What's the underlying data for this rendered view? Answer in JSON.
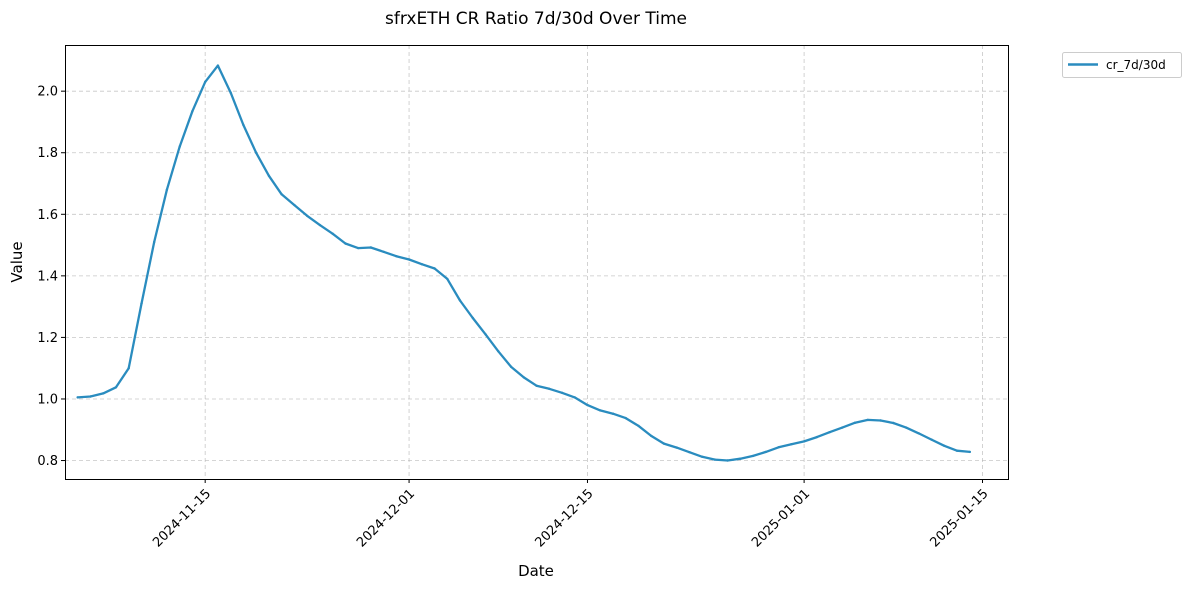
{
  "chart_data": {
    "type": "line",
    "title": "sfrxETH CR Ratio 7d/30d Over Time",
    "xlabel": "Date",
    "ylabel": "Value",
    "x_ticks": [
      "2024-11-15",
      "2024-12-01",
      "2024-12-15",
      "2025-01-01",
      "2025-01-15"
    ],
    "y_ticks": [
      "0.8",
      "1.0",
      "1.2",
      "1.4",
      "1.6",
      "1.8",
      "2.0"
    ],
    "ylim": [
      0.74,
      2.15
    ],
    "xlim": [
      "2024-11-04",
      "2025-01-17"
    ],
    "grid": true,
    "legend_position": "outside-top-right",
    "series": [
      {
        "name": "cr_7d/30d",
        "color": "#2a8cbf",
        "points": [
          [
            "2024-11-05",
            1.005
          ],
          [
            "2024-11-06",
            1.008
          ],
          [
            "2024-11-07",
            1.018
          ],
          [
            "2024-11-08",
            1.038
          ],
          [
            "2024-11-09",
            1.1
          ],
          [
            "2024-11-10",
            1.31
          ],
          [
            "2024-11-11",
            1.51
          ],
          [
            "2024-11-12",
            1.68
          ],
          [
            "2024-11-13",
            1.82
          ],
          [
            "2024-11-14",
            1.935
          ],
          [
            "2024-11-15",
            2.03
          ],
          [
            "2024-11-16",
            2.083
          ],
          [
            "2024-11-17",
            1.995
          ],
          [
            "2024-11-18",
            1.89
          ],
          [
            "2024-11-19",
            1.8
          ],
          [
            "2024-11-20",
            1.725
          ],
          [
            "2024-11-21",
            1.665
          ],
          [
            "2024-11-22",
            1.63
          ],
          [
            "2024-11-23",
            1.595
          ],
          [
            "2024-11-24",
            1.565
          ],
          [
            "2024-11-25",
            1.537
          ],
          [
            "2024-11-26",
            1.505
          ],
          [
            "2024-11-27",
            1.49
          ],
          [
            "2024-11-28",
            1.492
          ],
          [
            "2024-11-29",
            1.478
          ],
          [
            "2024-11-30",
            1.464
          ],
          [
            "2024-12-01",
            1.453
          ],
          [
            "2024-12-02",
            1.438
          ],
          [
            "2024-12-03",
            1.424
          ],
          [
            "2024-12-04",
            1.39
          ],
          [
            "2024-12-05",
            1.32
          ],
          [
            "2024-12-06",
            1.263
          ],
          [
            "2024-12-07",
            1.21
          ],
          [
            "2024-12-08",
            1.155
          ],
          [
            "2024-12-09",
            1.105
          ],
          [
            "2024-12-10",
            1.07
          ],
          [
            "2024-12-11",
            1.043
          ],
          [
            "2024-12-12",
            1.033
          ],
          [
            "2024-12-13",
            1.02
          ],
          [
            "2024-12-14",
            1.005
          ],
          [
            "2024-12-15",
            0.98
          ],
          [
            "2024-12-16",
            0.963
          ],
          [
            "2024-12-17",
            0.952
          ],
          [
            "2024-12-18",
            0.938
          ],
          [
            "2024-12-19",
            0.913
          ],
          [
            "2024-12-20",
            0.88
          ],
          [
            "2024-12-21",
            0.855
          ],
          [
            "2024-12-22",
            0.842
          ],
          [
            "2024-12-23",
            0.827
          ],
          [
            "2024-12-24",
            0.812
          ],
          [
            "2024-12-25",
            0.803
          ],
          [
            "2024-12-26",
            0.8
          ],
          [
            "2024-12-27",
            0.806
          ],
          [
            "2024-12-28",
            0.815
          ],
          [
            "2024-12-29",
            0.828
          ],
          [
            "2024-12-30",
            0.843
          ],
          [
            "2024-12-31",
            0.853
          ],
          [
            "2025-01-01",
            0.862
          ],
          [
            "2025-01-02",
            0.876
          ],
          [
            "2025-01-03",
            0.892
          ],
          [
            "2025-01-04",
            0.907
          ],
          [
            "2025-01-05",
            0.923
          ],
          [
            "2025-01-06",
            0.932
          ],
          [
            "2025-01-07",
            0.93
          ],
          [
            "2025-01-08",
            0.922
          ],
          [
            "2025-01-09",
            0.907
          ],
          [
            "2025-01-10",
            0.888
          ],
          [
            "2025-01-11",
            0.868
          ],
          [
            "2025-01-12",
            0.848
          ],
          [
            "2025-01-13",
            0.832
          ],
          [
            "2025-01-14",
            0.828
          ]
        ]
      }
    ]
  }
}
